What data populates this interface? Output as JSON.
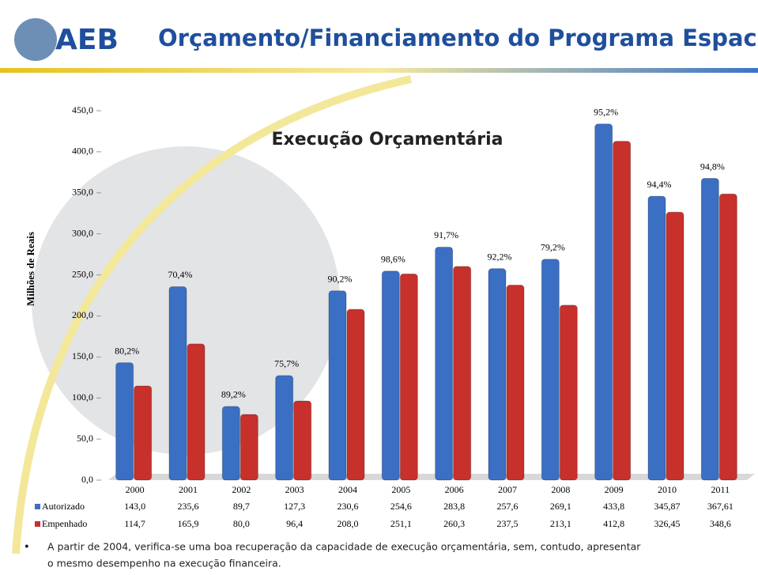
{
  "header": {
    "logo": "AEB",
    "title": "Orçamento/Financiamento do Programa Espacial"
  },
  "chart_data": {
    "type": "bar",
    "title": "Execução Orçamentária",
    "y_label": "Milhões de Reais",
    "categories": [
      "2000",
      "2001",
      "2002",
      "2003",
      "2004",
      "2005",
      "2006",
      "2007",
      "2008",
      "2009",
      "2010",
      "2011"
    ],
    "series": [
      {
        "name": "Autorizado",
        "color": "#3a6fc4",
        "values": [
          143.0,
          235.6,
          89.7,
          127.3,
          230.6,
          254.6,
          283.8,
          257.6,
          269.1,
          433.8,
          345.87,
          367.61
        ],
        "value_labels": [
          "143,0",
          "235,6",
          "89,7",
          "127,3",
          "230,6",
          "254,6",
          "283,8",
          "257,6",
          "269,1",
          "433,8",
          "345,87",
          "367,61"
        ]
      },
      {
        "name": "Empenhado",
        "color": "#c8302c",
        "values": [
          114.7,
          165.9,
          80.0,
          96.4,
          208.0,
          251.1,
          260.3,
          237.5,
          213.1,
          412.8,
          326.45,
          348.6
        ],
        "value_labels": [
          "114,7",
          "165,9",
          "80,0",
          "96,4",
          "208,0",
          "251,1",
          "260,3",
          "237,5",
          "213,1",
          "412,8",
          "326,45",
          "348,6"
        ]
      }
    ],
    "annotations": [
      "80,2%",
      "70,4%",
      "89,2%",
      "75,7%",
      "90,2%",
      "98,6%",
      "91,7%",
      "92,2%",
      "79,2%",
      "95,2%",
      "94,4%",
      "94,8%"
    ],
    "ylim": [
      0,
      450
    ],
    "yticks": [
      {
        "value": 0,
        "label": "0,0"
      },
      {
        "value": 50,
        "label": "50,0"
      },
      {
        "value": 100,
        "label": "100,0"
      },
      {
        "value": 150,
        "label": "150,0"
      },
      {
        "value": 200,
        "label": "200,0"
      },
      {
        "value": 250,
        "label": "250,0"
      },
      {
        "value": 300,
        "label": "300,0"
      },
      {
        "value": 350,
        "label": "350,0"
      },
      {
        "value": 400,
        "label": "400,0"
      },
      {
        "value": 450,
        "label": "450,0"
      }
    ]
  },
  "footnote": [
    "A partir de 2004, verifica-se uma boa recuperação da capacidade de execução orçamentária, sem, contudo, apresentar",
    "o mesmo desempenho na execução financeira."
  ]
}
